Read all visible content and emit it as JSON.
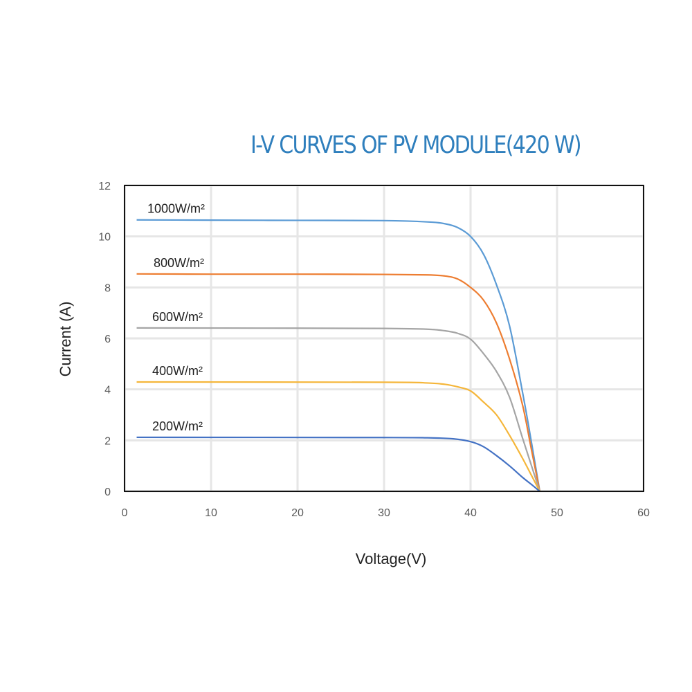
{
  "chart_data": {
    "type": "line",
    "title": "I-V CURVES OF PV MODULE(420 W)",
    "xlabel": "Voltage(V)",
    "ylabel": "Current (A)",
    "xlim": [
      0,
      60
    ],
    "ylim": [
      0,
      12
    ],
    "xticks": [
      0,
      10,
      20,
      30,
      40,
      50,
      60
    ],
    "yticks": [
      0,
      2,
      4,
      6,
      8,
      10,
      12
    ],
    "grid": true,
    "legend": "inline labels",
    "series": [
      {
        "name": "1000W/m²",
        "color": "#5b9bd5",
        "points": [
          [
            1.4,
            10.65
          ],
          [
            10,
            10.64
          ],
          [
            20,
            10.63
          ],
          [
            30,
            10.62
          ],
          [
            35,
            10.57
          ],
          [
            37,
            10.5
          ],
          [
            38.5,
            10.35
          ],
          [
            40,
            10.0
          ],
          [
            41.5,
            9.3
          ],
          [
            43,
            8.1
          ],
          [
            44.5,
            6.5
          ],
          [
            46,
            3.9
          ],
          [
            47,
            2.0
          ],
          [
            48,
            0
          ]
        ]
      },
      {
        "name": "800W/m²",
        "color": "#ed7d31",
        "points": [
          [
            1.4,
            8.53
          ],
          [
            10,
            8.52
          ],
          [
            20,
            8.52
          ],
          [
            30,
            8.51
          ],
          [
            35,
            8.49
          ],
          [
            37,
            8.45
          ],
          [
            38.5,
            8.33
          ],
          [
            40,
            8.0
          ],
          [
            41.5,
            7.5
          ],
          [
            43,
            6.6
          ],
          [
            44.5,
            5.2
          ],
          [
            46,
            3.4
          ],
          [
            47,
            1.7
          ],
          [
            48,
            0
          ]
        ]
      },
      {
        "name": "600W/m²",
        "color": "#a5a5a5",
        "points": [
          [
            1.4,
            6.41
          ],
          [
            20,
            6.4
          ],
          [
            30,
            6.39
          ],
          [
            35,
            6.36
          ],
          [
            37,
            6.3
          ],
          [
            38.5,
            6.2
          ],
          [
            40,
            5.97
          ],
          [
            41.5,
            5.4
          ],
          [
            43,
            4.7
          ],
          [
            44.5,
            3.7
          ],
          [
            46,
            2.1
          ],
          [
            47,
            1.05
          ],
          [
            48,
            0
          ]
        ]
      },
      {
        "name": "400W/m²",
        "color": "#f5b63a",
        "points": [
          [
            1.4,
            4.29
          ],
          [
            30,
            4.28
          ],
          [
            35,
            4.25
          ],
          [
            37,
            4.2
          ],
          [
            38.5,
            4.1
          ],
          [
            40,
            3.94
          ],
          [
            41.5,
            3.5
          ],
          [
            43,
            3.0
          ],
          [
            44.5,
            2.2
          ],
          [
            46,
            1.3
          ],
          [
            47,
            0.65
          ],
          [
            48,
            0
          ]
        ]
      },
      {
        "name": "200W/m²",
        "color": "#4472c4",
        "points": [
          [
            1.4,
            2.12
          ],
          [
            30,
            2.11
          ],
          [
            35,
            2.1
          ],
          [
            38,
            2.06
          ],
          [
            40,
            1.95
          ],
          [
            41.5,
            1.75
          ],
          [
            43,
            1.4
          ],
          [
            44.5,
            1.0
          ],
          [
            46,
            0.55
          ],
          [
            47,
            0.28
          ],
          [
            48,
            0
          ]
        ]
      }
    ]
  }
}
